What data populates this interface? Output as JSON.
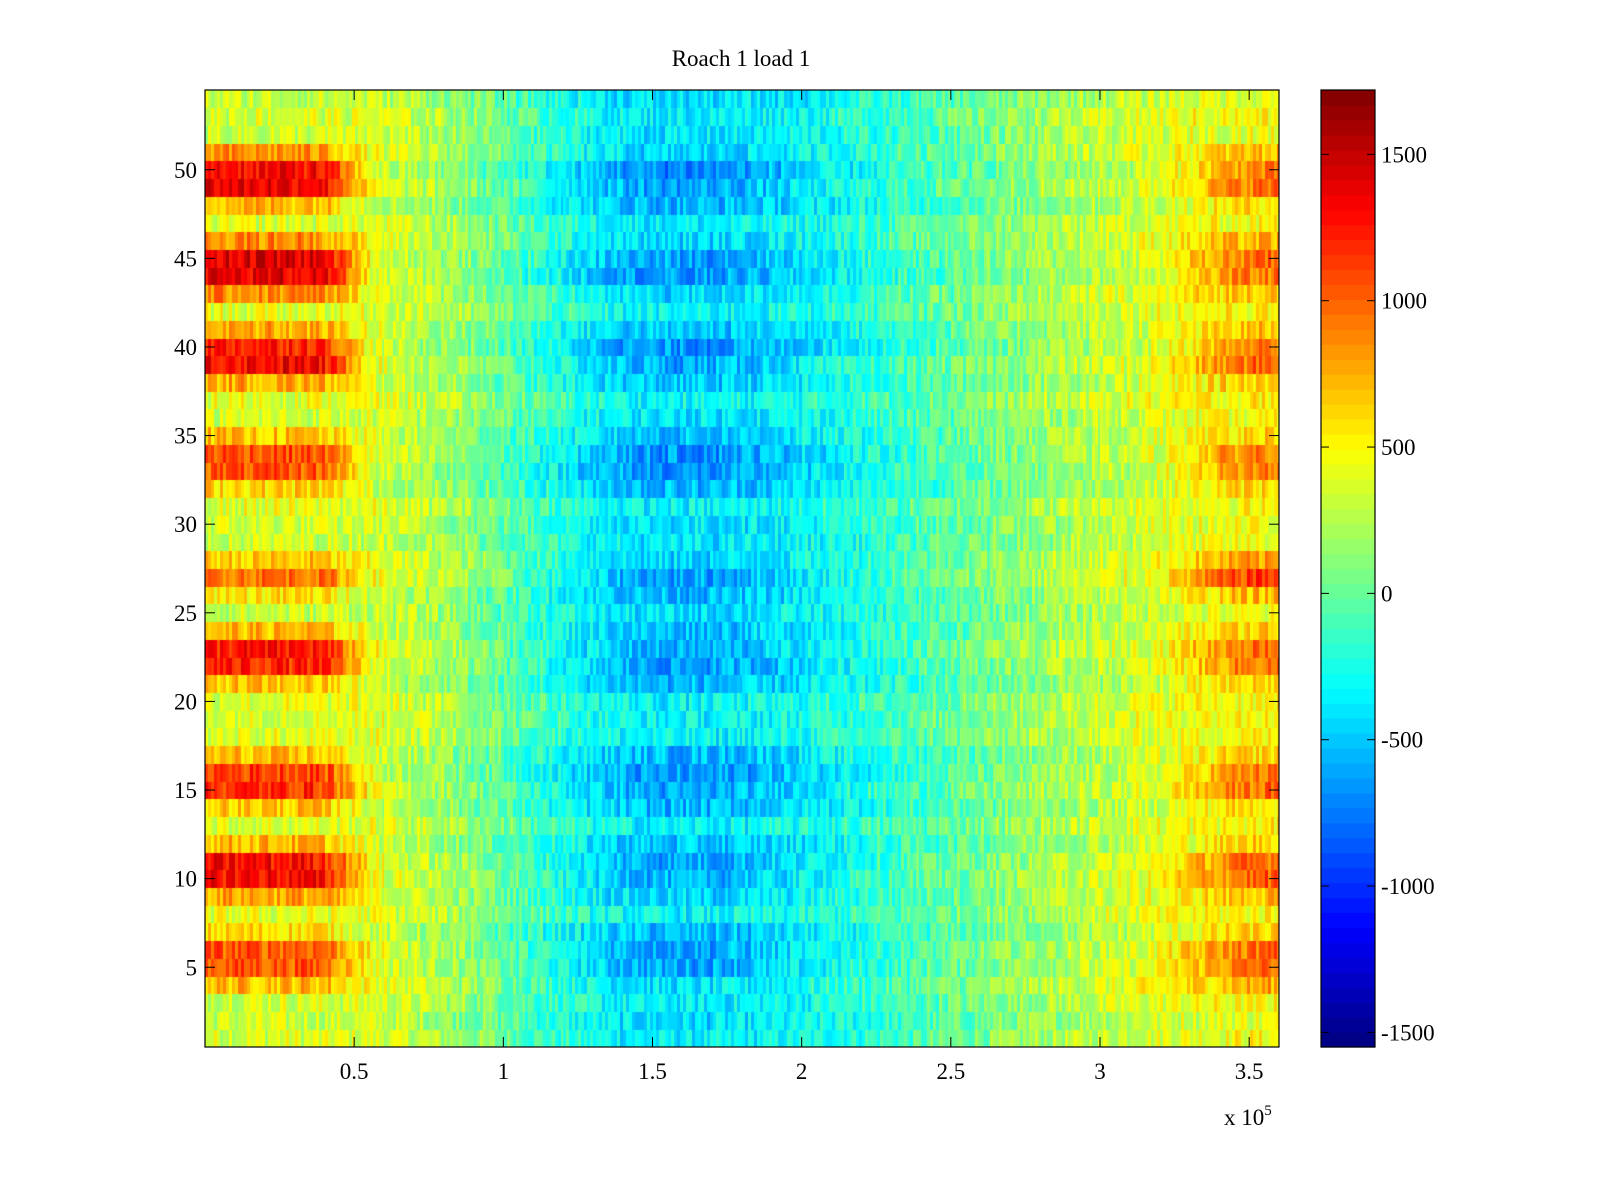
{
  "chart_data": {
    "type": "heatmap",
    "title": "Roach 1 load 1",
    "xlabel": "",
    "ylabel": "",
    "x_exponent_label": "x 10",
    "x_exponent_power": "5",
    "xlim": [
      0,
      3.6
    ],
    "ylim": [
      0.5,
      54.5
    ],
    "x_ticks": [
      0.5,
      1,
      1.5,
      2,
      2.5,
      3,
      3.5
    ],
    "x_tick_labels": [
      "0.5",
      "1",
      "1.5",
      "2",
      "2.5",
      "3",
      "3.5"
    ],
    "y_ticks": [
      5,
      10,
      15,
      20,
      25,
      30,
      35,
      40,
      45,
      50
    ],
    "y_tick_labels": [
      "5",
      "10",
      "15",
      "20",
      "25",
      "30",
      "35",
      "40",
      "45",
      "50"
    ],
    "rows": 54,
    "columns": 360,
    "colormap": "jet",
    "colorbar": {
      "range": [
        -1550,
        1720
      ],
      "ticks": [
        -1500,
        -1000,
        -500,
        0,
        500,
        1000,
        1500
      ],
      "tick_labels": [
        "-1500",
        "-1000",
        "-500",
        "0",
        "500",
        "1000",
        "1500"
      ]
    },
    "value_profile": {
      "description": "high values at left edge (x < 0.6) in row bands, minimum around x 1.3-1.9, rising again toward right edge",
      "hot_row_bands": [
        {
          "rows": [
            4,
            7
          ],
          "peak": 1200
        },
        {
          "rows": [
            9,
            12
          ],
          "peak": 1500
        },
        {
          "rows": [
            14,
            17
          ],
          "peak": 1400
        },
        {
          "rows": [
            21,
            24
          ],
          "peak": 1450
        },
        {
          "rows": [
            26,
            28
          ],
          "peak": 900
        },
        {
          "rows": [
            32,
            35
          ],
          "peak": 1300
        },
        {
          "rows": [
            38,
            41
          ],
          "peak": 1550
        },
        {
          "rows": [
            43,
            46
          ],
          "peak": 1700
        },
        {
          "rows": [
            48,
            51
          ],
          "peak": 1650
        }
      ]
    }
  }
}
